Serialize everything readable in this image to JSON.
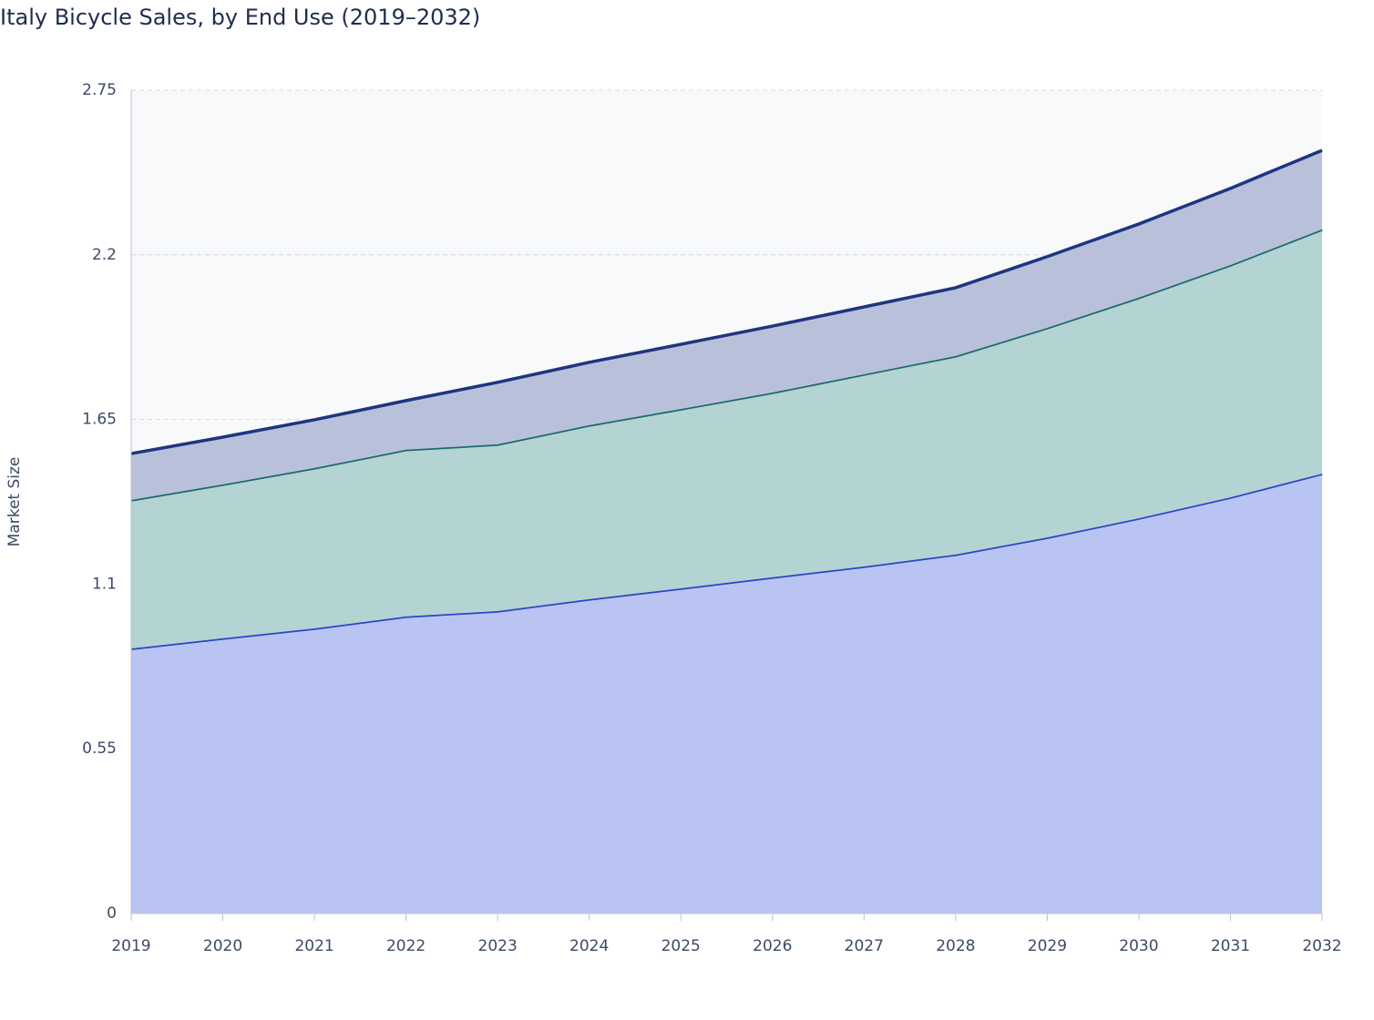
{
  "chart_data": {
    "type": "stacked_area",
    "title": "Italy Bicycle Sales, by End Use (2019–2032)",
    "y_label": "Market Size",
    "x": [
      2019,
      2020,
      2021,
      2022,
      2023,
      2024,
      2025,
      2026,
      2027,
      2028,
      2029,
      2030,
      2031,
      2032
    ],
    "xlim": [
      2019,
      2032
    ],
    "xticks": [
      2019,
      2020,
      2021,
      2022,
      2023,
      2024,
      2025,
      2026,
      2027,
      2028,
      2029,
      2030,
      2031,
      2032
    ],
    "ylim": [
      0,
      2.75
    ],
    "yticks": [
      0,
      0.55,
      1.1,
      1.65,
      2.2,
      2.75
    ],
    "grid": true,
    "series": [
      {
        "color": "#2a45c8",
        "fill": "#bac4f2",
        "values": [
          0.885,
          0.919,
          0.952,
          0.992,
          1.01,
          1.05,
          1.086,
          1.123,
          1.159,
          1.199,
          1.256,
          1.32,
          1.39,
          1.469
        ]
      },
      {
        "color": "#1a6b6b",
        "fill": "#b4d3d3",
        "values": [
          0.496,
          0.514,
          0.536,
          0.557,
          0.557,
          0.581,
          0.599,
          0.617,
          0.642,
          0.663,
          0.7,
          0.737,
          0.776,
          0.816
        ]
      },
      {
        "color": "#1e3580",
        "fill": "#b9c1da",
        "values": [
          0.155,
          0.158,
          0.161,
          0.164,
          0.207,
          0.21,
          0.216,
          0.222,
          0.225,
          0.228,
          0.238,
          0.246,
          0.256,
          0.264
        ]
      }
    ]
  }
}
